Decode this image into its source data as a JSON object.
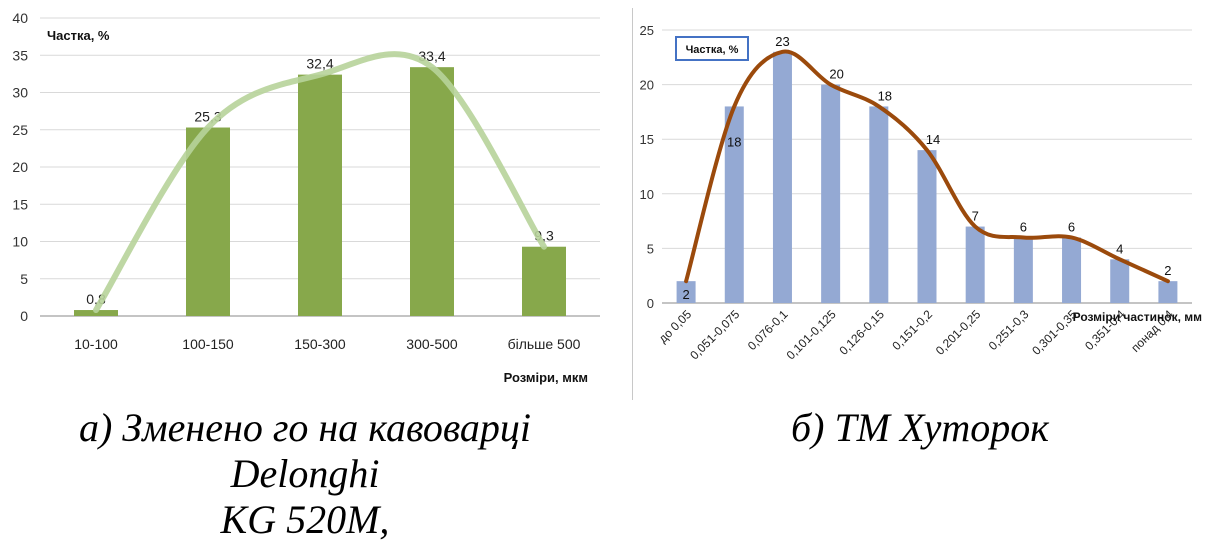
{
  "chart_data": [
    {
      "type": "bar",
      "categories": [
        "10-100",
        "100-150",
        "150-300",
        "300-500",
        "більше 500"
      ],
      "values": [
        0.8,
        25.3,
        32.4,
        33.4,
        9.3
      ],
      "value_labels": [
        "0,8",
        "25,3",
        "32,4",
        "33,4",
        "9,3"
      ],
      "ylabel": "Частка,  %",
      "xlabel": "Розміри, мкм",
      "ylim": [
        0,
        40
      ],
      "yticks": [
        0,
        5,
        10,
        15,
        20,
        25,
        30,
        35,
        40
      ],
      "grid": true,
      "trendline": "smooth curve through bar values",
      "colors": {
        "bar": "#87a84b",
        "curve": "#b7d39a",
        "grid": "#d9d9d9"
      }
    },
    {
      "type": "bar",
      "categories": [
        "до 0,05",
        "0,051-0,075",
        "0,076-0,1",
        "0,101-0,125",
        "0,126-0,15",
        "0,151-0,2",
        "0,201-0,25",
        "0,251-0,3",
        "0,301-0,35",
        "0,351-0,4",
        "понад 0,4"
      ],
      "values": [
        2,
        18,
        23,
        20,
        18,
        14,
        7,
        6,
        6,
        4,
        2
      ],
      "value_labels": [
        "2",
        "18",
        "23",
        "20",
        "18",
        "14",
        "7",
        "6",
        "6",
        "4",
        "2"
      ],
      "ylabel": "Частка, %",
      "xlabel": "Розміри частинок, мм",
      "ylim": [
        0,
        25
      ],
      "yticks": [
        0,
        5,
        10,
        15,
        20,
        25
      ],
      "grid": true,
      "trendline": "smooth curve through bar values",
      "colors": {
        "bar": "#94a9d3",
        "curve": "#9b4a0c",
        "grid": "#d9d9d9",
        "label_border": "#4472c4"
      }
    }
  ],
  "captions": {
    "a_line1": "а)  Зменено го на кавоварці Delonghi",
    "a_line2": "KG 520M,",
    "b": "б)  ТМ Хуторок"
  }
}
